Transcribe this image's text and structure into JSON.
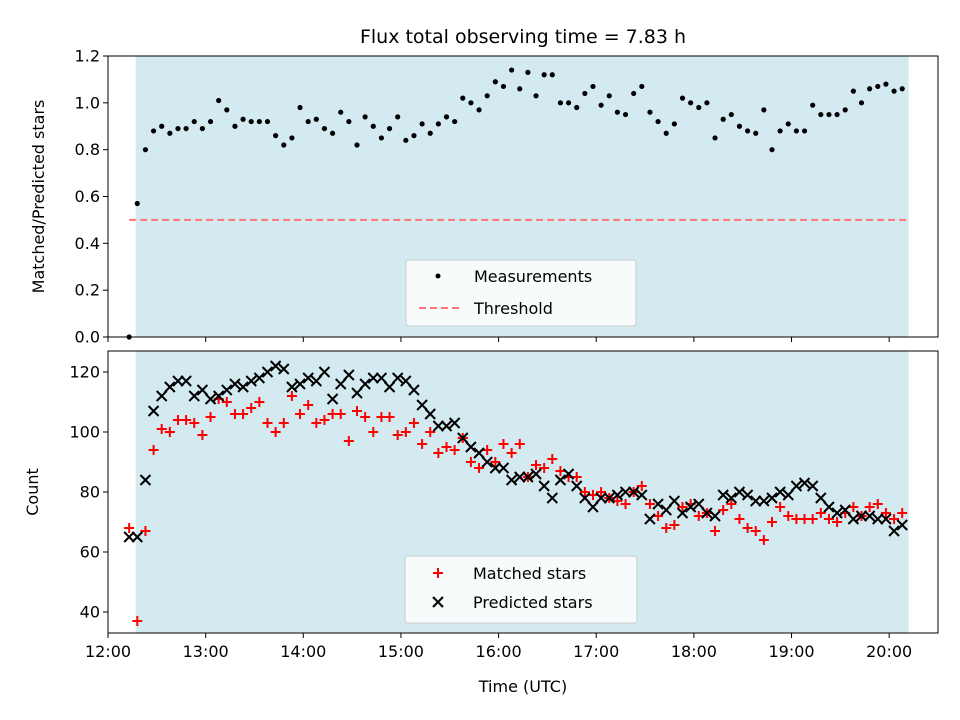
{
  "chart_data": [
    {
      "type": "scatter",
      "title": "Flux total observing time = 7.83 h",
      "xlabel": "",
      "ylabel": "Matched/Predicted stars",
      "xlim": [
        "12:00",
        "20:30"
      ],
      "ylim": [
        0,
        1.2
      ],
      "yticks": [
        "0.0",
        "0.2",
        "0.4",
        "0.6",
        "0.8",
        "1.0",
        "1.2"
      ],
      "shaded_span": [
        "12:17",
        "20:12"
      ],
      "shade_color": "#d4eaf1",
      "grid": false,
      "legend": {
        "placement": "lower-center",
        "entries": [
          "Measurements",
          "Threshold"
        ]
      },
      "threshold": {
        "name": "Threshold",
        "value": 0.5,
        "x_from": "12:13",
        "x_to": "20:12",
        "color": "#ff7373",
        "style": "dashed"
      },
      "series": [
        {
          "name": "Measurements",
          "color": "#000000",
          "marker": "dot",
          "x": [
            "12:13",
            "12:18",
            "12:23",
            "12:28",
            "12:33",
            "12:38",
            "12:43",
            "12:48",
            "12:53",
            "12:58",
            "13:03",
            "13:08",
            "13:13",
            "13:18",
            "13:23",
            "13:28",
            "13:33",
            "13:38",
            "13:43",
            "13:48",
            "13:53",
            "13:58",
            "14:03",
            "14:08",
            "14:13",
            "14:18",
            "14:23",
            "14:28",
            "14:33",
            "14:38",
            "14:43",
            "14:48",
            "14:53",
            "14:58",
            "15:03",
            "15:08",
            "15:13",
            "15:18",
            "15:23",
            "15:28",
            "15:33",
            "15:38",
            "15:43",
            "15:48",
            "15:53",
            "15:58",
            "16:03",
            "16:08",
            "16:13",
            "16:18",
            "16:23",
            "16:28",
            "16:33",
            "16:38",
            "16:43",
            "16:48",
            "16:53",
            "16:58",
            "17:03",
            "17:08",
            "17:13",
            "17:18",
            "17:23",
            "17:28",
            "17:33",
            "17:38",
            "17:43",
            "17:48",
            "17:53",
            "17:58",
            "18:03",
            "18:08",
            "18:13",
            "18:18",
            "18:23",
            "18:28",
            "18:33",
            "18:38",
            "18:43",
            "18:48",
            "18:53",
            "18:58",
            "19:03",
            "19:08",
            "19:13",
            "19:18",
            "19:23",
            "19:28",
            "19:33",
            "19:38",
            "19:43",
            "19:48",
            "19:53",
            "19:58",
            "20:03",
            "20:08"
          ],
          "y": [
            0.0,
            0.57,
            0.8,
            0.88,
            0.9,
            0.87,
            0.89,
            0.89,
            0.92,
            0.89,
            0.92,
            1.01,
            0.97,
            0.9,
            0.93,
            0.92,
            0.92,
            0.92,
            0.86,
            0.82,
            0.85,
            0.98,
            0.92,
            0.93,
            0.89,
            0.87,
            0.96,
            0.92,
            0.82,
            0.94,
            0.9,
            0.85,
            0.89,
            0.94,
            0.84,
            0.86,
            0.91,
            0.87,
            0.91,
            0.94,
            0.92,
            1.02,
            1.0,
            0.97,
            1.03,
            1.09,
            1.07,
            1.14,
            1.06,
            1.13,
            1.03,
            1.12,
            1.12,
            1.0,
            1.0,
            0.98,
            1.04,
            1.07,
            0.99,
            1.03,
            0.96,
            0.95,
            1.04,
            1.07,
            0.96,
            0.92,
            0.87,
            0.91,
            1.02,
            1.0,
            0.98,
            1.0,
            0.85,
            0.93,
            0.95,
            0.9,
            0.88,
            0.87,
            0.97,
            0.8,
            0.88,
            0.91,
            0.88,
            0.88,
            0.99,
            0.95,
            0.95,
            0.95,
            0.97,
            1.05,
            1.0,
            1.06,
            1.07,
            1.08,
            1.05,
            1.06
          ]
        }
      ]
    },
    {
      "type": "scatter",
      "title": "",
      "xlabel": "Time (UTC)",
      "ylabel": "Count",
      "xlim": [
        "12:00",
        "20:30"
      ],
      "ylim": [
        33,
        127
      ],
      "xticks": [
        "12:00",
        "13:00",
        "14:00",
        "15:00",
        "16:00",
        "17:00",
        "18:00",
        "19:00",
        "20:00"
      ],
      "yticks": [
        "40",
        "60",
        "80",
        "100",
        "120"
      ],
      "shaded_span": [
        "12:17",
        "20:12"
      ],
      "shade_color": "#d4eaf1",
      "grid": false,
      "legend": {
        "placement": "lower-center",
        "entries": [
          "Matched stars",
          "Predicted stars"
        ]
      },
      "series": [
        {
          "name": "Matched stars",
          "color": "#ff0000",
          "marker": "plus",
          "x": [
            "12:13",
            "12:18",
            "12:23",
            "12:28",
            "12:33",
            "12:38",
            "12:43",
            "12:48",
            "12:53",
            "12:58",
            "13:03",
            "13:08",
            "13:13",
            "13:18",
            "13:23",
            "13:28",
            "13:33",
            "13:38",
            "13:43",
            "13:48",
            "13:53",
            "13:58",
            "14:03",
            "14:08",
            "14:13",
            "14:18",
            "14:23",
            "14:28",
            "14:33",
            "14:38",
            "14:43",
            "14:48",
            "14:53",
            "14:58",
            "15:03",
            "15:08",
            "15:13",
            "15:18",
            "15:23",
            "15:28",
            "15:33",
            "15:38",
            "15:43",
            "15:48",
            "15:53",
            "15:58",
            "16:03",
            "16:08",
            "16:13",
            "16:18",
            "16:23",
            "16:28",
            "16:33",
            "16:38",
            "16:43",
            "16:48",
            "16:53",
            "16:58",
            "17:03",
            "17:08",
            "17:13",
            "17:18",
            "17:23",
            "17:28",
            "17:33",
            "17:38",
            "17:43",
            "17:48",
            "17:53",
            "17:58",
            "18:03",
            "18:08",
            "18:13",
            "18:18",
            "18:23",
            "18:28",
            "18:33",
            "18:38",
            "18:43",
            "18:48",
            "18:53",
            "18:58",
            "19:03",
            "19:08",
            "19:13",
            "19:18",
            "19:23",
            "19:28",
            "19:33",
            "19:38",
            "19:43",
            "19:48",
            "19:53",
            "19:58",
            "20:03",
            "20:08"
          ],
          "y": [
            68,
            37,
            67,
            94,
            101,
            100,
            104,
            104,
            103,
            99,
            105,
            111,
            110,
            106,
            106,
            108,
            110,
            103,
            100,
            103,
            112,
            106,
            109,
            103,
            104,
            106,
            106,
            97,
            107,
            105,
            100,
            105,
            105,
            99,
            100,
            103,
            96,
            100,
            93,
            95,
            94,
            98,
            90,
            88,
            94,
            90,
            96,
            93,
            96,
            85,
            89,
            88,
            91,
            87,
            85,
            85,
            80,
            79,
            80,
            78,
            77,
            76,
            80,
            82,
            76,
            72,
            68,
            69,
            75,
            76,
            72,
            73,
            67,
            74,
            76,
            71,
            68,
            67,
            64,
            70,
            75,
            72,
            71,
            71,
            71,
            73,
            71,
            70,
            73,
            75,
            72,
            75,
            76,
            73,
            71,
            73
          ]
        },
        {
          "name": "Predicted stars",
          "color": "#000000",
          "marker": "x",
          "x": [
            "12:13",
            "12:18",
            "12:23",
            "12:28",
            "12:33",
            "12:38",
            "12:43",
            "12:48",
            "12:53",
            "12:58",
            "13:03",
            "13:08",
            "13:13",
            "13:18",
            "13:23",
            "13:28",
            "13:33",
            "13:38",
            "13:43",
            "13:48",
            "13:53",
            "13:58",
            "14:03",
            "14:08",
            "14:13",
            "14:18",
            "14:23",
            "14:28",
            "14:33",
            "14:38",
            "14:43",
            "14:48",
            "14:53",
            "14:58",
            "15:03",
            "15:08",
            "15:13",
            "15:18",
            "15:23",
            "15:28",
            "15:33",
            "15:38",
            "15:43",
            "15:48",
            "15:53",
            "15:58",
            "16:03",
            "16:08",
            "16:13",
            "16:18",
            "16:23",
            "16:28",
            "16:33",
            "16:38",
            "16:43",
            "16:48",
            "16:53",
            "16:58",
            "17:03",
            "17:08",
            "17:13",
            "17:18",
            "17:23",
            "17:28",
            "17:33",
            "17:38",
            "17:43",
            "17:48",
            "17:53",
            "17:58",
            "18:03",
            "18:08",
            "18:13",
            "18:18",
            "18:23",
            "18:28",
            "18:33",
            "18:38",
            "18:43",
            "18:48",
            "18:53",
            "18:58",
            "19:03",
            "19:08",
            "19:13",
            "19:18",
            "19:23",
            "19:28",
            "19:33",
            "19:38",
            "19:43",
            "19:48",
            "19:53",
            "19:58",
            "20:03",
            "20:08"
          ],
          "y": [
            65,
            65,
            84,
            107,
            112,
            115,
            117,
            117,
            112,
            114,
            111,
            112,
            114,
            116,
            115,
            117,
            118,
            120,
            122,
            121,
            115,
            116,
            118,
            117,
            120,
            111,
            116,
            119,
            113,
            116,
            118,
            118,
            115,
            118,
            117,
            114,
            109,
            106,
            102,
            102,
            103,
            98,
            95,
            93,
            90,
            88,
            88,
            84,
            85,
            85,
            86,
            82,
            78,
            84,
            86,
            82,
            78,
            75,
            78,
            78,
            79,
            80,
            80,
            79,
            71,
            76,
            74,
            77,
            73,
            75,
            76,
            73,
            72,
            79,
            78,
            80,
            79,
            77,
            77,
            78,
            80,
            79,
            82,
            83,
            82,
            78,
            75,
            73,
            74,
            71,
            72,
            72,
            71,
            71,
            67,
            69
          ]
        }
      ]
    }
  ]
}
